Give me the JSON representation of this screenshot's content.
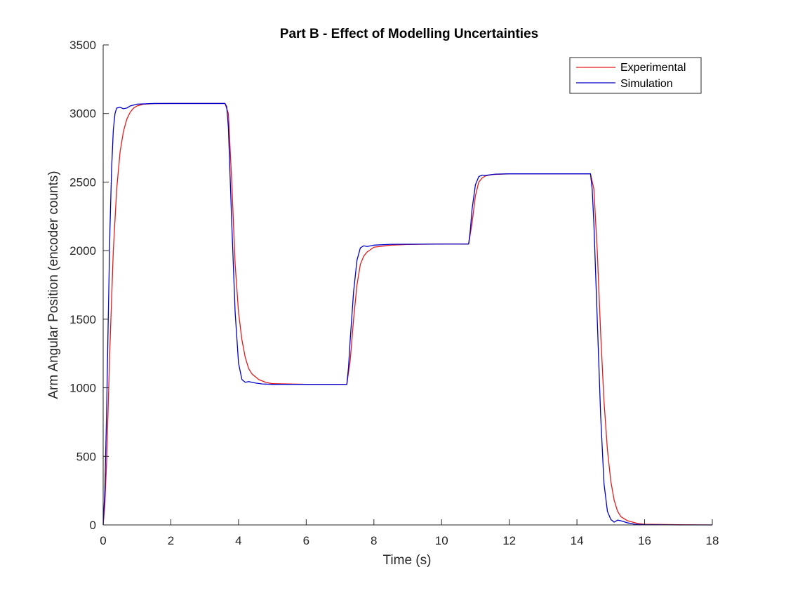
{
  "chart_data": {
    "type": "line",
    "title": "Part B - Effect of Modelling Uncertainties",
    "xlabel": "Time (s)",
    "ylabel": "Arm Angular Position (encoder counts)",
    "xlim": [
      0,
      18
    ],
    "ylim": [
      0,
      3500
    ],
    "xticks": [
      0,
      2,
      4,
      6,
      8,
      10,
      12,
      14,
      16,
      18
    ],
    "yticks": [
      0,
      500,
      1000,
      1500,
      2000,
      2500,
      3000,
      3500
    ],
    "xtick_labels": [
      "0",
      "2",
      "4",
      "6",
      "8",
      "10",
      "12",
      "14",
      "16",
      "18"
    ],
    "ytick_labels": [
      "0",
      "500",
      "1000",
      "1500",
      "2000",
      "2500",
      "3000",
      "3500"
    ],
    "grid": false,
    "legend_position": "top-right",
    "series": [
      {
        "name": "Experimental",
        "color": "#e31a1c",
        "x": [
          0,
          0.05,
          0.1,
          0.2,
          0.3,
          0.4,
          0.5,
          0.6,
          0.7,
          0.8,
          0.9,
          1.0,
          1.2,
          1.5,
          2.0,
          3.0,
          3.6,
          3.7,
          3.8,
          3.9,
          4.0,
          4.1,
          4.2,
          4.3,
          4.4,
          4.6,
          4.8,
          5.0,
          6.0,
          7.2,
          7.3,
          7.4,
          7.5,
          7.6,
          7.7,
          7.8,
          8.0,
          8.5,
          9.0,
          10.0,
          10.8,
          10.9,
          11.0,
          11.1,
          11.2,
          11.3,
          11.5,
          12.0,
          13.0,
          14.4,
          14.5,
          14.6,
          14.7,
          14.8,
          14.9,
          15.0,
          15.1,
          15.2,
          15.3,
          15.5,
          15.8,
          16.0,
          17.0,
          18.0
        ],
        "y": [
          0,
          150,
          450,
          1300,
          2000,
          2450,
          2720,
          2870,
          2960,
          3010,
          3040,
          3055,
          3068,
          3072,
          3073,
          3073,
          3073,
          3000,
          2500,
          1900,
          1550,
          1350,
          1220,
          1140,
          1100,
          1060,
          1040,
          1030,
          1025,
          1025,
          1200,
          1500,
          1750,
          1900,
          1960,
          1990,
          2025,
          2040,
          2045,
          2048,
          2048,
          2200,
          2400,
          2500,
          2530,
          2545,
          2555,
          2560,
          2560,
          2560,
          2450,
          2000,
          1400,
          900,
          550,
          320,
          180,
          100,
          60,
          30,
          10,
          5,
          2,
          0
        ]
      },
      {
        "name": "Simulation",
        "color": "#0000cc",
        "x": [
          0,
          0.05,
          0.1,
          0.15,
          0.2,
          0.25,
          0.3,
          0.35,
          0.4,
          0.5,
          0.6,
          0.7,
          0.8,
          1.0,
          1.5,
          2.0,
          3.0,
          3.6,
          3.65,
          3.7,
          3.8,
          3.9,
          4.0,
          4.1,
          4.2,
          4.3,
          4.4,
          4.5,
          4.7,
          5.0,
          6.0,
          7.2,
          7.25,
          7.3,
          7.4,
          7.5,
          7.6,
          7.7,
          7.8,
          8.0,
          8.5,
          10.0,
          10.8,
          10.85,
          10.9,
          11.0,
          11.1,
          11.2,
          11.3,
          11.4,
          11.6,
          12.0,
          13.0,
          14.4,
          14.45,
          14.5,
          14.6,
          14.7,
          14.8,
          14.9,
          15.0,
          15.1,
          15.2,
          15.3,
          15.5,
          15.7,
          16.0,
          17.0,
          18.0
        ],
        "y": [
          0,
          250,
          800,
          1500,
          2150,
          2600,
          2880,
          3000,
          3040,
          3045,
          3035,
          3040,
          3055,
          3068,
          3073,
          3073,
          3073,
          3073,
          3050,
          2900,
          2200,
          1550,
          1180,
          1060,
          1040,
          1045,
          1040,
          1035,
          1028,
          1025,
          1025,
          1025,
          1150,
          1350,
          1700,
          1930,
          2020,
          2035,
          2030,
          2040,
          2046,
          2048,
          2048,
          2150,
          2300,
          2480,
          2540,
          2550,
          2548,
          2552,
          2558,
          2560,
          2560,
          2560,
          2450,
          2200,
          1500,
          800,
          300,
          100,
          40,
          20,
          35,
          30,
          15,
          5,
          2,
          0,
          0
        ]
      }
    ]
  }
}
